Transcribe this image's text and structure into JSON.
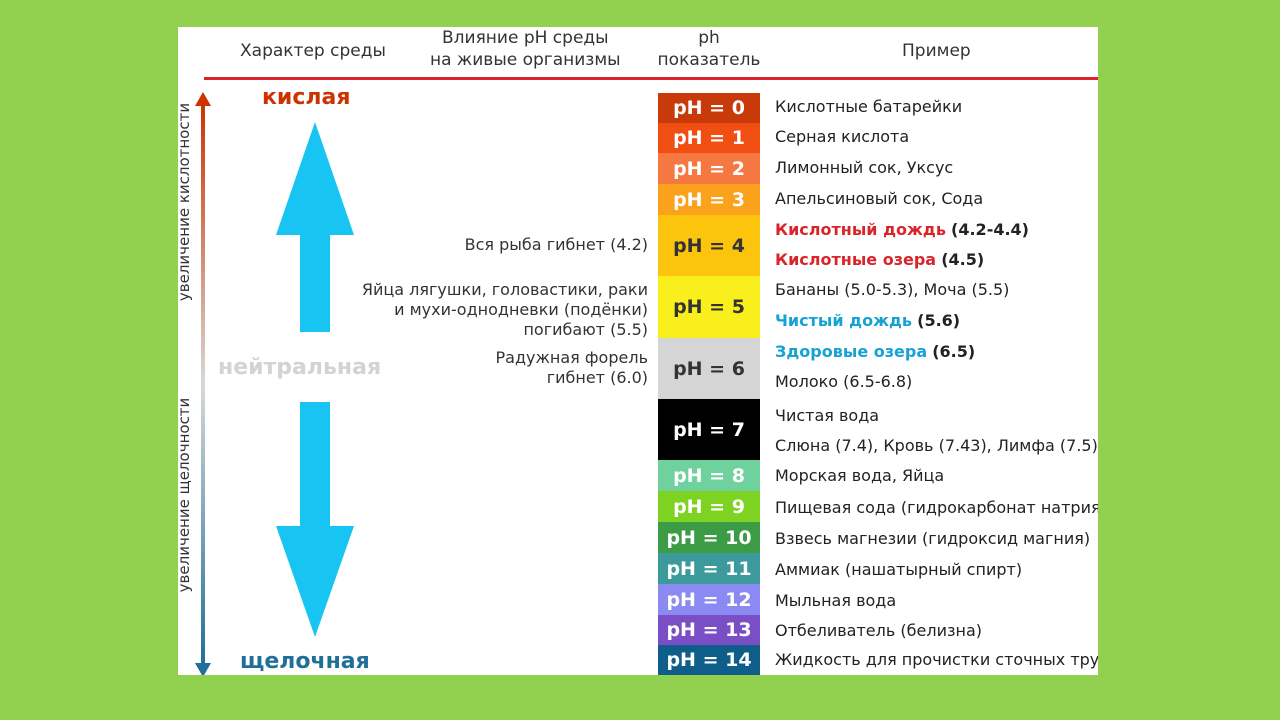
{
  "headers": {
    "character": "Характер среды",
    "influence_line1": "Влияние pH среды",
    "influence_line2": "на живые организмы",
    "ph_line1": "ph",
    "ph_line2": "показатель",
    "example": "Пример"
  },
  "side_labels": {
    "acidity": "увеличение кислотности",
    "alkalinity": "увеличение щелочности"
  },
  "character": {
    "acid": "кислая",
    "neutral": "нейтральная",
    "alkaline": "щелочная"
  },
  "colors": {
    "acid": "#cc3300",
    "neutral": "#d6d6d6",
    "alkaline": "#1f6f99",
    "big_arrow": "#18c5f2",
    "rule": "#d9252a",
    "highlight_red": "#d9252a",
    "highlight_blue": "#16a2d4"
  },
  "scale": [
    {
      "label": "pH = 0",
      "color": "#c93a0a",
      "text": "#ffffff"
    },
    {
      "label": "pH = 1",
      "color": "#f04e13",
      "text": "#ffffff"
    },
    {
      "label": "pH = 2",
      "color": "#f57843",
      "text": "#ffffff"
    },
    {
      "label": "pH = 3",
      "color": "#fba21c",
      "text": "#ffffff"
    },
    {
      "label": "pH = 4",
      "color": "#fdc40d",
      "text": "#333333"
    },
    {
      "label": "pH = 5",
      "color": "#f8ef1c",
      "text": "#333333"
    },
    {
      "label": "pH = 6",
      "color": "#d5d5d5",
      "text": "#333333"
    },
    {
      "label": "pH = 7",
      "color": "#000000",
      "text": "#ffffff"
    },
    {
      "label": "pH = 8",
      "color": "#6fd19e",
      "text": "#ffffff"
    },
    {
      "label": "pH = 9",
      "color": "#7ed222",
      "text": "#ffffff"
    },
    {
      "label": "pH = 10",
      "color": "#3c9c46",
      "text": "#ffffff"
    },
    {
      "label": "pH = 11",
      "color": "#3d9a9c",
      "text": "#ffffff"
    },
    {
      "label": "pH = 12",
      "color": "#8a8af2",
      "text": "#ffffff"
    },
    {
      "label": "pH = 13",
      "color": "#7a4fc6",
      "text": "#ffffff"
    },
    {
      "label": "pH = 14",
      "color": "#0f5d89",
      "text": "#ffffff"
    }
  ],
  "effects": {
    "fish": "Вся рыба гибнет (4.2)",
    "frogs_1": "Яйца лягушки, головастики, раки",
    "frogs_2": "и мухи-однодневки (подёнки)",
    "frogs_3": "погибают (5.5)",
    "trout_1": "Радужная форель",
    "trout_2": "гибнет (6.0)"
  },
  "examples": {
    "e0": "Кислотные батарейки",
    "e1": "Серная кислота",
    "e2": "Лимонный сок, Уксус",
    "e3": "Апельсиновый сок, Сода",
    "e4a_hl": "Кислотный дождь",
    "e4a_val": "(4.2-4.4)",
    "e4b_hl": "Кислотные озера",
    "e4b_val": "(4.5)",
    "e5a": "Бананы (5.0-5.3), Моча (5.5)",
    "e5b_hl": "Чистый дождь",
    "e5b_val": "(5.6)",
    "e6a_hl": "Здоровые озера",
    "e6a_val": "(6.5)",
    "e6b": "Молоко (6.5-6.8)",
    "e7a": "Чистая вода",
    "e7b": "Слюна (7.4), Кровь (7.43), Лимфа (7.5)",
    "e8": "Морская вода, Яйца",
    "e9": "Пищевая сода (гидрокарбонат натрия)",
    "e10": "Взвесь магнезии (гидроксид магния)",
    "e11": "Аммиак (нашатырный спирт)",
    "e12": "Мыльная вода",
    "e13": "Отбеливатель (белизна)",
    "e14": "Жидкость для прочистки сточных труб"
  }
}
